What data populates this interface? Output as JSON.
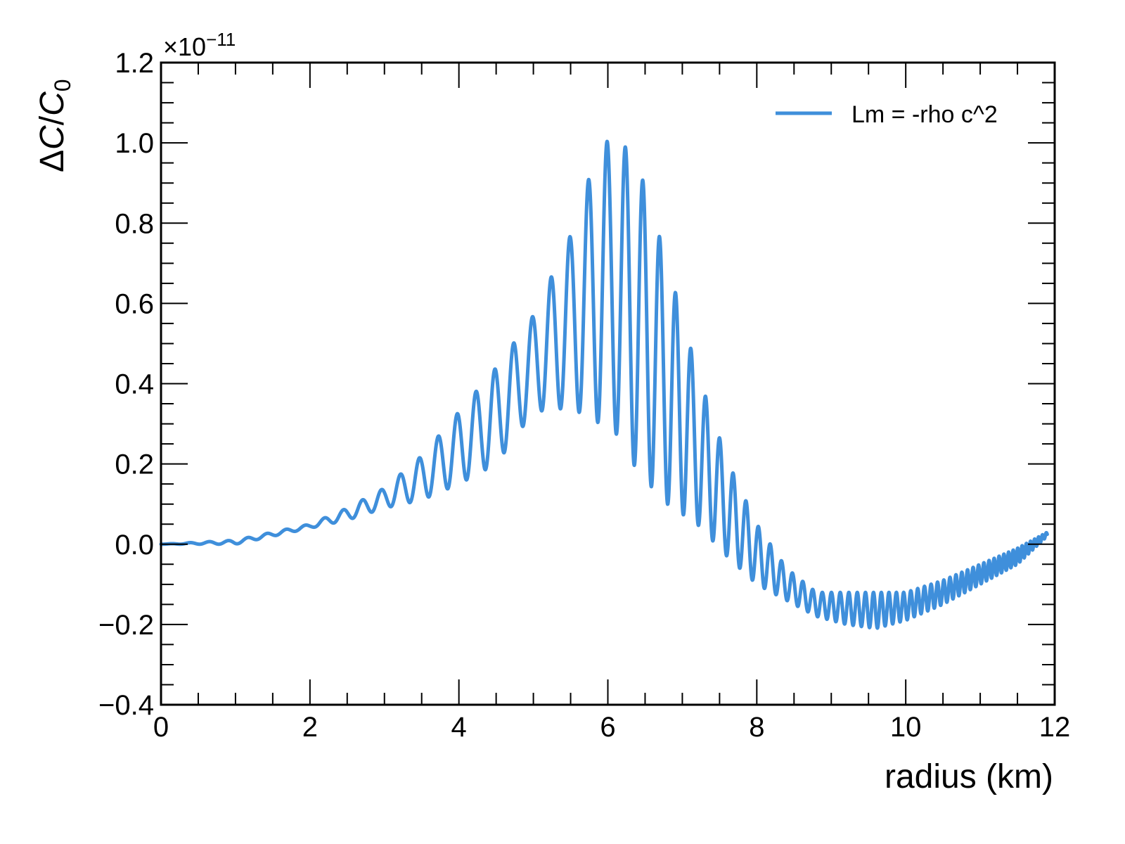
{
  "chart_data": {
    "type": "line",
    "title": "",
    "xlabel": "radius (km)",
    "ylabel": "ΔC/C0",
    "ylabel_parts": {
      "delta": "Δ",
      "c": "C",
      "slash": "/",
      "c0": "C",
      "sub": "0"
    },
    "y_multiplier": {
      "base": "×10",
      "exponent": "−11"
    },
    "xlim": [
      0,
      12
    ],
    "ylim": [
      -0.4,
      1.2
    ],
    "grid": false,
    "legend_position": "upper right",
    "x_ticks": [
      {
        "value": 0,
        "label": "0"
      },
      {
        "value": 2,
        "label": "2"
      },
      {
        "value": 4,
        "label": "4"
      },
      {
        "value": 6,
        "label": "6"
      },
      {
        "value": 8,
        "label": "8"
      },
      {
        "value": 10,
        "label": "10"
      },
      {
        "value": 12,
        "label": "12"
      }
    ],
    "y_ticks": [
      {
        "value": -0.4,
        "label": "−0.4"
      },
      {
        "value": -0.2,
        "label": "−0.2"
      },
      {
        "value": 0.0,
        "label": "0.0"
      },
      {
        "value": 0.2,
        "label": "0.2"
      },
      {
        "value": 0.4,
        "label": "0.4"
      },
      {
        "value": 0.6,
        "label": "0.6"
      },
      {
        "value": 0.8,
        "label": "0.8"
      },
      {
        "value": 1.0,
        "label": "1.0"
      },
      {
        "value": 1.2,
        "label": "1.2"
      }
    ],
    "series": [
      {
        "name": "Lm = -rho c^2",
        "color": "#3f8fdb",
        "line_width": 5,
        "description": "Oscillating curve; upper/lower envelope (×1e-11) sampled vs radius (km)",
        "envelope": {
          "x": [
            0.0,
            1.0,
            2.0,
            2.5,
            3.0,
            3.5,
            4.0,
            4.5,
            5.0,
            5.5,
            5.9,
            6.15,
            6.4,
            6.8,
            7.2,
            7.6,
            8.0,
            8.4,
            8.8,
            9.2,
            9.6,
            10.0,
            10.5,
            11.0,
            11.5,
            11.9
          ],
          "upper": [
            0.0,
            0.01,
            0.05,
            0.09,
            0.14,
            0.22,
            0.33,
            0.44,
            0.57,
            0.77,
            1.0,
            1.01,
            0.95,
            0.7,
            0.43,
            0.21,
            0.05,
            -0.06,
            -0.12,
            -0.12,
            -0.12,
            -0.12,
            -0.09,
            -0.05,
            -0.01,
            0.03
          ],
          "lower": [
            0.0,
            0.0,
            0.04,
            0.06,
            0.09,
            0.11,
            0.15,
            0.2,
            0.33,
            0.34,
            0.3,
            0.27,
            0.18,
            0.1,
            0.05,
            -0.03,
            -0.1,
            -0.14,
            -0.18,
            -0.2,
            -0.21,
            -0.19,
            -0.15,
            -0.1,
            -0.05,
            0.02
          ]
        },
        "oscillation_period_km": {
          "x": [
            0,
            6,
            9,
            11.9
          ],
          "period": [
            0.26,
            0.25,
            0.12,
            0.05
          ]
        }
      }
    ]
  },
  "legend": {
    "entries": [
      {
        "label": "Lm = -rho c^2",
        "color": "#3f8fdb"
      }
    ]
  }
}
